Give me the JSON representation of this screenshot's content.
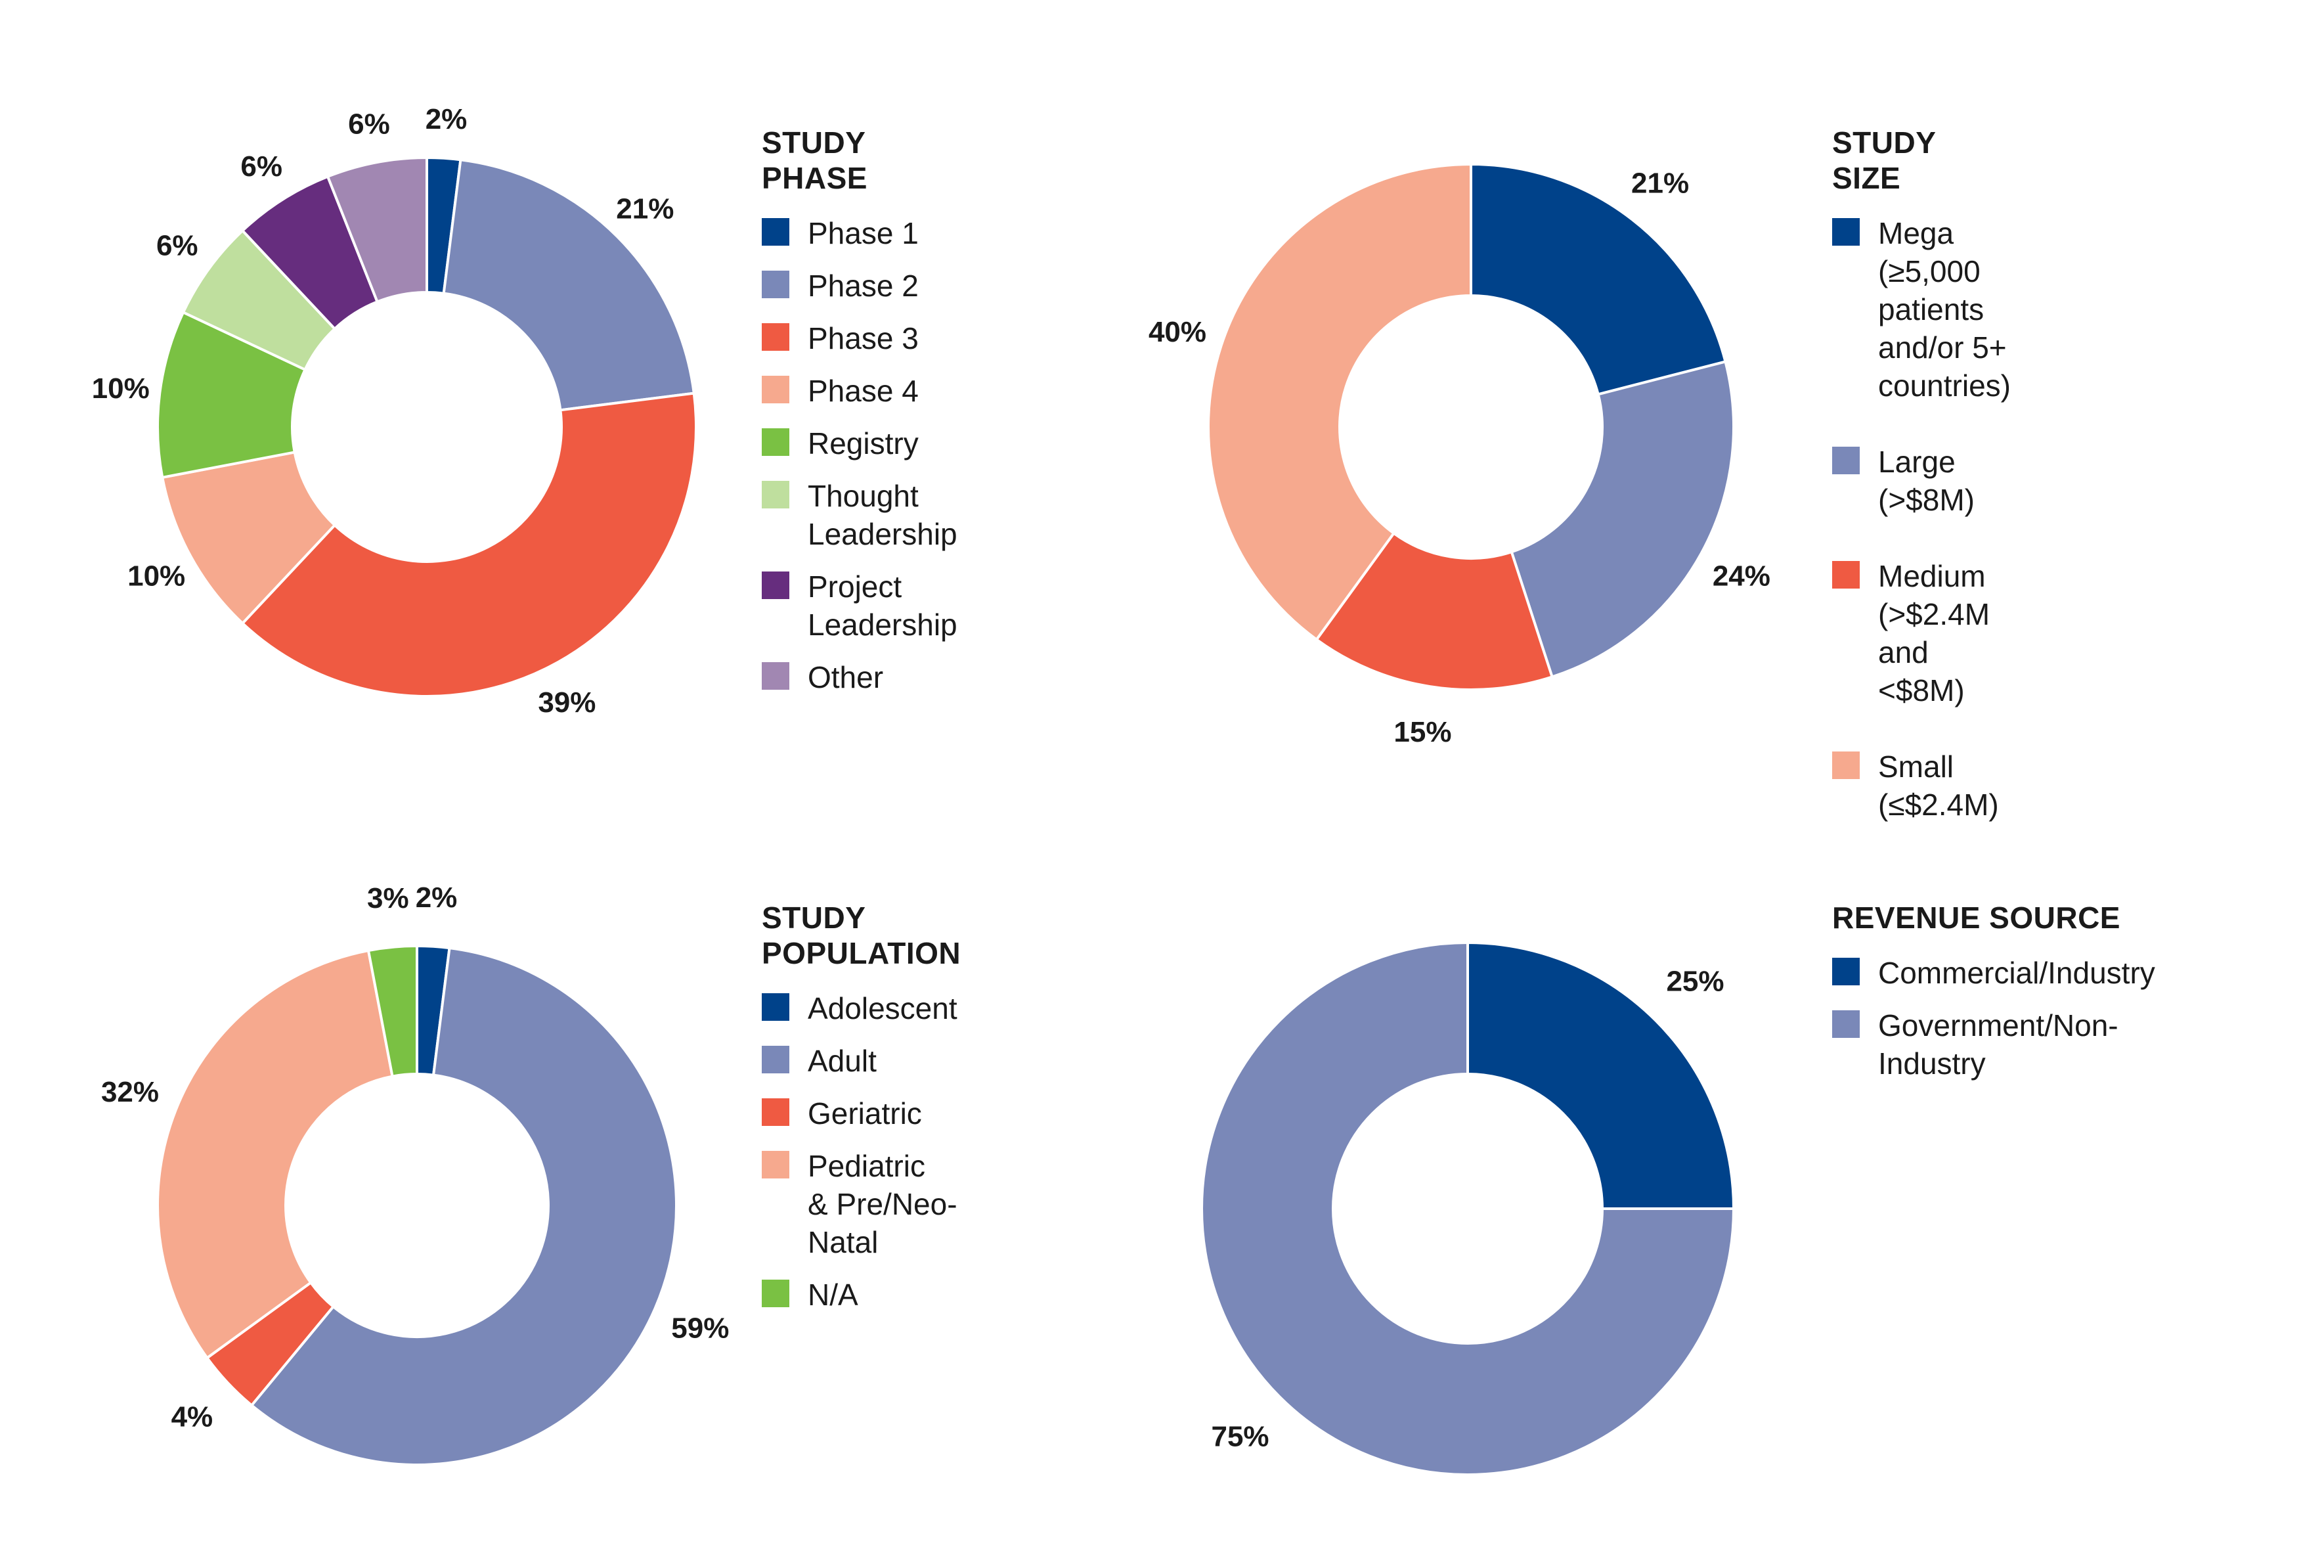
{
  "chart_data": [
    {
      "type": "pie",
      "title": "STUDY PHASE",
      "categories": [
        "Phase 1",
        "Phase 2",
        "Phase 3",
        "Phase 4",
        "Registry",
        "Thought Leadership",
        "Project Leadership",
        "Other"
      ],
      "values": [
        2,
        21,
        39,
        10,
        10,
        6,
        6,
        6
      ],
      "value_labels": [
        "2%",
        "21%",
        "39%",
        "10%",
        "10%",
        "6%",
        "6%",
        "6%"
      ],
      "colors": [
        "#00428a",
        "#7a88b8",
        "#ef5a42",
        "#f6a98e",
        "#7ac143",
        "#bfdf9e",
        "#662d7e",
        "#a187b2"
      ]
    },
    {
      "type": "pie",
      "title": "STUDY SIZE",
      "categories": [
        "Mega\n(≥5,000 patients\nand/or 5+ countries)",
        "Large\n(>$8M)",
        "Medium\n(>$2.4M and <$8M)",
        "Small\n(≤$2.4M)"
      ],
      "values": [
        21,
        24,
        15,
        40
      ],
      "value_labels": [
        "21%",
        "24%",
        "15%",
        "40%"
      ],
      "colors": [
        "#00428a",
        "#7a88b8",
        "#ef5a42",
        "#f6a98e"
      ]
    },
    {
      "type": "pie",
      "title": "STUDY POPULATION",
      "categories": [
        "Adolescent",
        "Adult",
        "Geriatric",
        "Pediatric\n& Pre/Neo-Natal",
        "N/A"
      ],
      "values": [
        2,
        59,
        4,
        32,
        3
      ],
      "value_labels": [
        "2%",
        "59%",
        "4%",
        "32%",
        "3%"
      ],
      "colors": [
        "#00428a",
        "#7a88b8",
        "#ef5a42",
        "#f6a98e",
        "#7ac143"
      ]
    },
    {
      "type": "pie",
      "title": "REVENUE SOURCE",
      "categories": [
        "Commercial/Industry",
        "Government/Non-Industry"
      ],
      "values": [
        25,
        75
      ],
      "value_labels": [
        "25%",
        "75%"
      ],
      "colors": [
        "#00428a",
        "#7a88b8"
      ]
    }
  ]
}
